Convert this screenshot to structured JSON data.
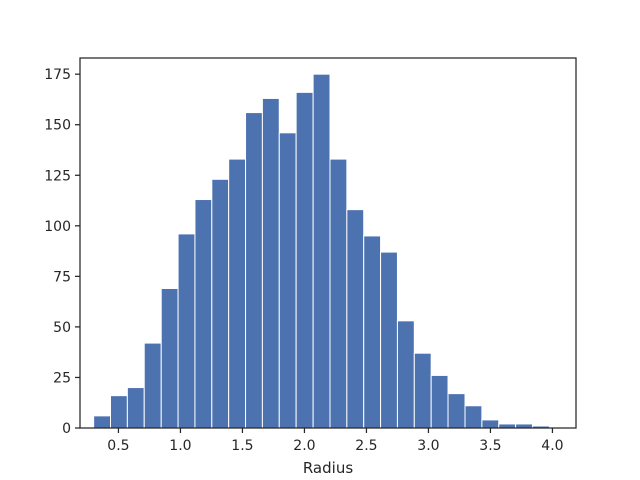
{
  "chart_data": {
    "type": "bar",
    "title": "",
    "xlabel": "Radius",
    "ylabel": "",
    "bar_color": "#4c72b0",
    "grid": false,
    "xlim": [
      0.19,
      4.19
    ],
    "ylim": [
      0,
      183
    ],
    "xticks": [
      0.5,
      1.0,
      1.5,
      2.0,
      2.5,
      3.0,
      3.5,
      4.0
    ],
    "xtick_labels": [
      "0.5",
      "1.0",
      "1.5",
      "2.0",
      "2.5",
      "3.0",
      "3.5",
      "4.0"
    ],
    "yticks": [
      0,
      25,
      50,
      75,
      100,
      125,
      150,
      175
    ],
    "ytick_labels": [
      "0",
      "25",
      "50",
      "75",
      "100",
      "125",
      "150",
      "175"
    ],
    "bin_edges": [
      0.3,
      0.436,
      0.572,
      0.708,
      0.845,
      0.981,
      1.117,
      1.253,
      1.389,
      1.525,
      1.661,
      1.797,
      1.933,
      2.07,
      2.206,
      2.342,
      2.478,
      2.614,
      2.75,
      2.886,
      3.022,
      3.158,
      3.295,
      3.431,
      3.567,
      3.703,
      3.839,
      3.975
    ],
    "values": [
      6,
      16,
      20,
      42,
      69,
      96,
      113,
      123,
      133,
      156,
      163,
      146,
      166,
      175,
      133,
      108,
      95,
      87,
      53,
      37,
      26,
      17,
      11,
      4,
      2,
      2,
      1
    ]
  }
}
